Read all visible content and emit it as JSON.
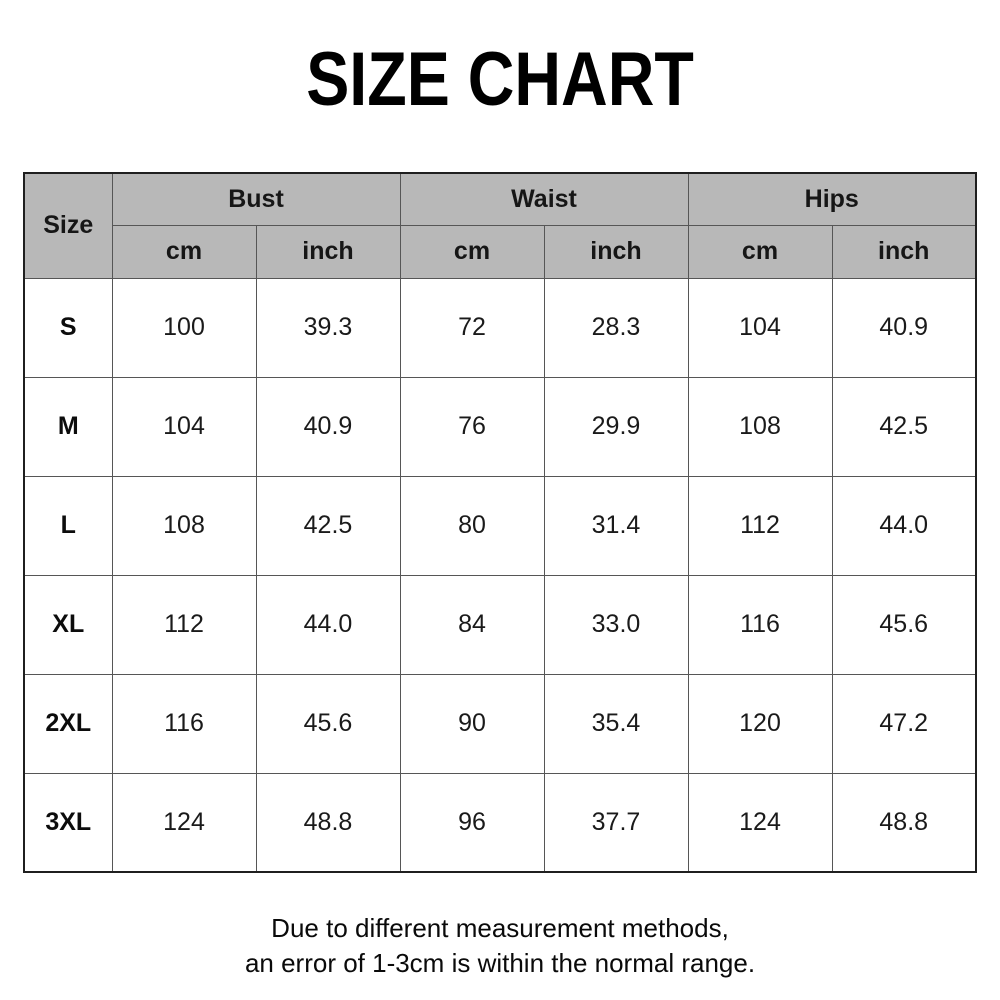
{
  "title": "SIZE CHART",
  "table": {
    "corner_header": "Size",
    "group_headers": [
      "Bust",
      "Waist",
      "Hips"
    ],
    "unit_headers": [
      "cm",
      "inch",
      "cm",
      "inch",
      "cm",
      "inch"
    ],
    "rows": [
      {
        "size": "S",
        "values": [
          "100",
          "39.3",
          "72",
          "28.3",
          "104",
          "40.9"
        ]
      },
      {
        "size": "M",
        "values": [
          "104",
          "40.9",
          "76",
          "29.9",
          "108",
          "42.5"
        ]
      },
      {
        "size": "L",
        "values": [
          "108",
          "42.5",
          "80",
          "31.4",
          "112",
          "44.0"
        ]
      },
      {
        "size": "XL",
        "values": [
          "112",
          "44.0",
          "84",
          "33.0",
          "116",
          "45.6"
        ]
      },
      {
        "size": "2XL",
        "values": [
          "116",
          "45.6",
          "90",
          "35.4",
          "120",
          "47.2"
        ]
      },
      {
        "size": "3XL",
        "values": [
          "124",
          "48.8",
          "96",
          "37.7",
          "124",
          "48.8"
        ]
      }
    ]
  },
  "footer": {
    "line1": "Due to different measurement methods,",
    "line2": "an error of 1-3cm is within the normal range."
  },
  "colors": {
    "header_bg": "#b8b8b8",
    "border_inner": "#565656",
    "border_outer": "#1f1f1f",
    "title_text": "#000000",
    "body_text": "#1a1a1a"
  },
  "chart_data": {
    "type": "table",
    "title": "SIZE CHART",
    "columns": [
      "Size",
      "Bust cm",
      "Bust inch",
      "Waist cm",
      "Waist inch",
      "Hips cm",
      "Hips inch"
    ],
    "rows": [
      [
        "S",
        100,
        39.3,
        72,
        28.3,
        104,
        40.9
      ],
      [
        "M",
        104,
        40.9,
        76,
        29.9,
        108,
        42.5
      ],
      [
        "L",
        108,
        42.5,
        80,
        31.4,
        112,
        44.0
      ],
      [
        "XL",
        112,
        44.0,
        84,
        33.0,
        116,
        45.6
      ],
      [
        "2XL",
        116,
        45.6,
        90,
        35.4,
        120,
        47.2
      ],
      [
        "3XL",
        124,
        48.8,
        96,
        37.7,
        124,
        48.8
      ]
    ],
    "note": "Due to different measurement methods, an error of 1-3cm is within the normal range.",
    "layout_hints": {
      "header_rows": 2,
      "grouped_columns": true,
      "header_background": "#b8b8b8"
    }
  }
}
